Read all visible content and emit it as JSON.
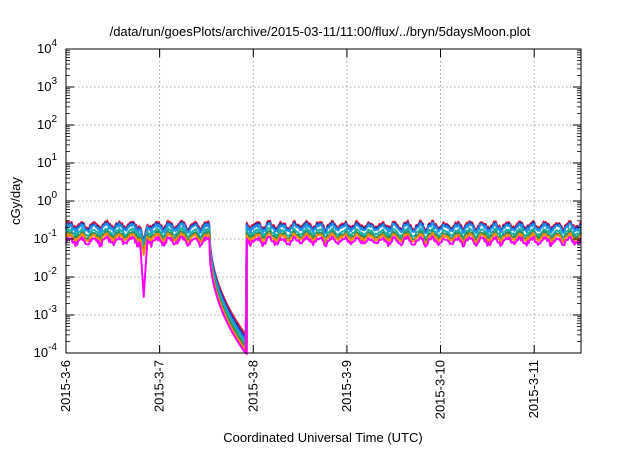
{
  "chart_data": {
    "type": "line",
    "title": "/data/run/goesPlots/archive/2015-03-11/11:00/flux/../bryn/5daysMoon.plot",
    "xlabel": "Coordinated Universal Time (UTC)",
    "ylabel": "cGy/day",
    "yscale": "log",
    "ylim": [
      0.0001,
      10000
    ],
    "xlim": [
      0,
      5.5
    ],
    "x_units": "days since 2015-3-6",
    "x_tick_labels": [
      "2015-3-6",
      "2015-3-7",
      "2015-3-8",
      "2015-3-9",
      "2015-3-10",
      "2015-3-11"
    ],
    "x_tick_values": [
      0,
      1,
      2,
      3,
      4,
      5
    ],
    "y_tick_exponents": [
      -4,
      -3,
      -2,
      -1,
      0,
      1,
      2,
      3,
      4
    ],
    "y_tick_base": "10",
    "grid": true,
    "legend": "none",
    "series": [
      {
        "color": "#e8173a",
        "base": 0.235,
        "notes": "red, highest"
      },
      {
        "color": "#2233aa",
        "base": 0.215,
        "notes": "dark blue"
      },
      {
        "color": "#1e90e6",
        "base": 0.2,
        "notes": "light blue"
      },
      {
        "color": "#20b2aa",
        "base": 0.15,
        "notes": "teal"
      },
      {
        "color": "#2e8b57",
        "base": 0.125,
        "notes": "green"
      },
      {
        "color": "#ff8c00",
        "base": 0.11,
        "notes": "orange"
      },
      {
        "color": "#ff00ff",
        "base": 0.09,
        "notes": "magenta, lowest"
      }
    ],
    "features": {
      "dip_day": 0.83,
      "dip_min": 0.003,
      "dropout_start": 1.53,
      "dropout_end": 1.93,
      "dropout_floor_red": 0.00028,
      "dropout_floor_magenta": 9e-05
    }
  }
}
